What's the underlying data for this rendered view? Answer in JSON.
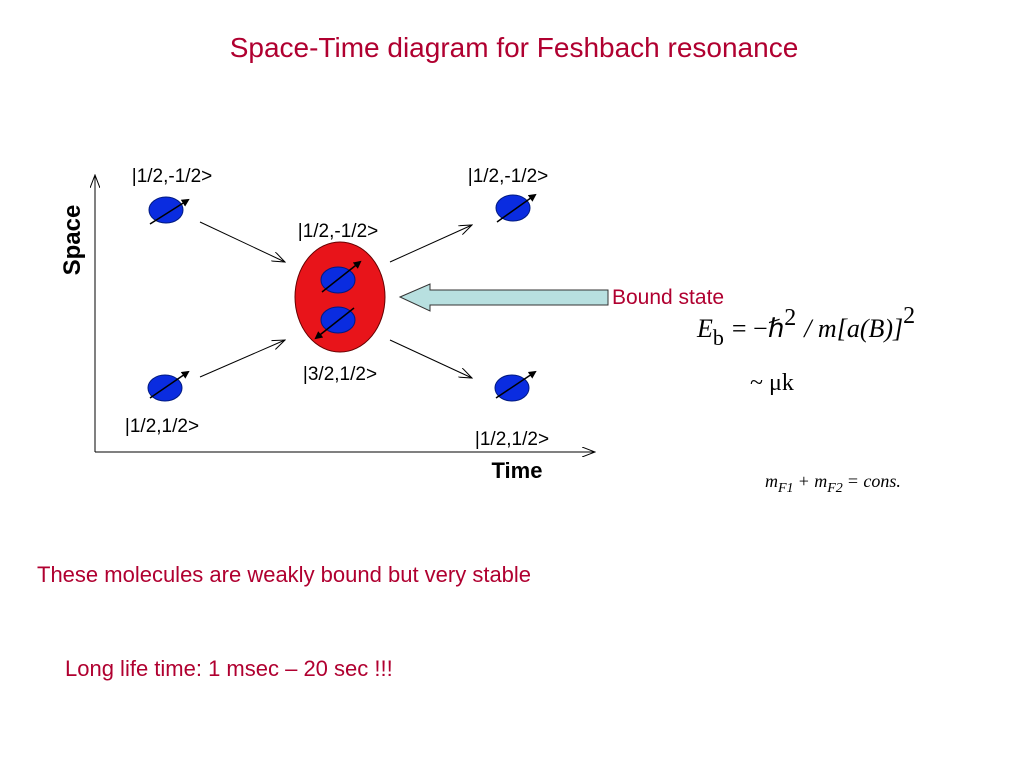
{
  "title": "Space-Time diagram for Feshbach resonance",
  "axes": {
    "y_label": "Space",
    "x_label": "Time"
  },
  "states": {
    "in_top": "|1/2,-1/2>",
    "out_top": "|1/2,-1/2>",
    "bound_top": "|1/2,-1/2>",
    "bound_bottom": "|3/2,1/2>",
    "in_bottom": "|1/2,1/2>",
    "out_bottom": "|1/2,1/2>"
  },
  "bound_label": "Bound state",
  "equation_energy": {
    "e": "E",
    "sub": "b",
    "mid": "= −ℏ",
    "sup1": "2",
    "rest": "/ m[a(B)]",
    "sup2": "2"
  },
  "equation_scaling": "~ μk",
  "equation_conservation": {
    "m1": "m",
    "sub1": "F1",
    "plus": "+ m",
    "sub2": "F2",
    "rest": "= cons."
  },
  "notes": [
    "These molecules are weakly bound but very stable",
    "Long life time: 1 msec – 20 sec !!!"
  ]
}
